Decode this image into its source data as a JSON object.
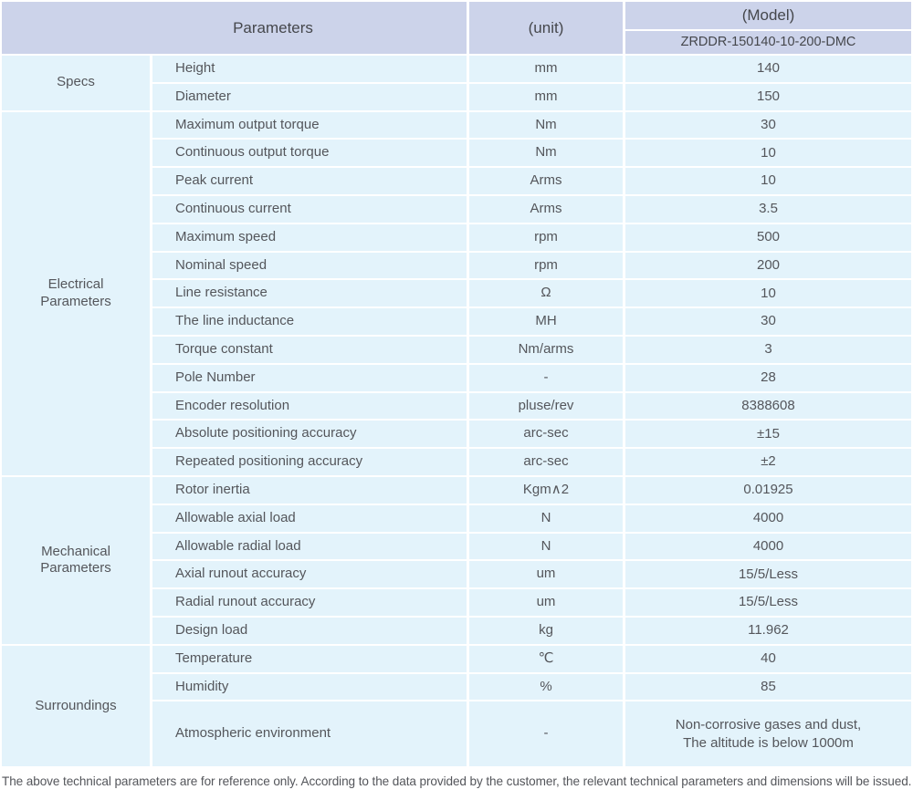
{
  "colors": {
    "header_bg": "#ccd3ea",
    "cell_bg": "#e3f3fb",
    "text": "#54565b"
  },
  "header": {
    "parameters": "Parameters",
    "unit": "(unit)",
    "model": "(Model)",
    "model_code": "ZRDDR-150140-10-200-DMC"
  },
  "groups": [
    {
      "label": "Specs",
      "rows": [
        {
          "param": "Height",
          "unit": "mm",
          "value": "140"
        },
        {
          "param": "Diameter",
          "unit": "mm",
          "value": "150"
        }
      ]
    },
    {
      "label": "Electrical\nParameters",
      "rows": [
        {
          "param": "Maximum output torque",
          "unit": "Nm",
          "value": "30"
        },
        {
          "param": "Continuous output torque",
          "unit": "Nm",
          "value": "10"
        },
        {
          "param": "Peak current",
          "unit": "Arms",
          "value": "10"
        },
        {
          "param": "Continuous current",
          "unit": "Arms",
          "value": "3.5"
        },
        {
          "param": "Maximum speed",
          "unit": "rpm",
          "value": "500"
        },
        {
          "param": "Nominal speed",
          "unit": "rpm",
          "value": "200"
        },
        {
          "param": "Line resistance",
          "unit": "Ω",
          "value": "10"
        },
        {
          "param": "The line inductance",
          "unit": "MH",
          "value": "30"
        },
        {
          "param": "Torque constant",
          "unit": "Nm/arms",
          "value": "3"
        },
        {
          "param": "Pole Number",
          "unit": "-",
          "value": "28"
        },
        {
          "param": "Encoder resolution",
          "unit": "pluse/rev",
          "value": "8388608"
        },
        {
          "param": "Absolute positioning accuracy",
          "unit": "arc-sec",
          "value": "±15"
        },
        {
          "param": "Repeated positioning accuracy",
          "unit": "arc-sec",
          "value": "±2"
        }
      ]
    },
    {
      "label": "Mechanical\nParameters",
      "rows": [
        {
          "param": "Rotor inertia",
          "unit": "Kgm∧2",
          "value": "0.01925"
        },
        {
          "param": "Allowable axial load",
          "unit": "N",
          "value": "4000"
        },
        {
          "param": "Allowable radial load",
          "unit": "N",
          "value": "4000"
        },
        {
          "param": "Axial runout accuracy",
          "unit": "um",
          "value": "15/5/Less"
        },
        {
          "param": "Radial runout accuracy",
          "unit": "um",
          "value": "15/5/Less"
        },
        {
          "param": "Design load",
          "unit": "kg",
          "value": "11.962"
        }
      ]
    },
    {
      "label": "Surroundings",
      "rows": [
        {
          "param": "Temperature",
          "unit": "℃",
          "value": "40"
        },
        {
          "param": "Humidity",
          "unit": "%",
          "value": "85"
        },
        {
          "param": "Atmospheric environment",
          "unit": "-",
          "value": "Non-corrosive gases and dust,\nThe altitude is below 1000m"
        }
      ]
    }
  ],
  "footer": "The above technical parameters are for reference only. According to the data provided by the customer, the relevant technical parameters and dimensions will be issued."
}
